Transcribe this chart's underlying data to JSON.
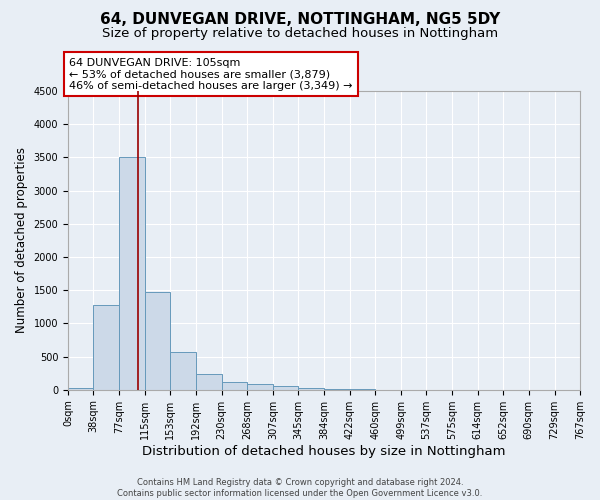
{
  "title": "64, DUNVEGAN DRIVE, NOTTINGHAM, NG5 5DY",
  "subtitle": "Size of property relative to detached houses in Nottingham",
  "xlabel": "Distribution of detached houses by size in Nottingham",
  "ylabel": "Number of detached properties",
  "footer_line1": "Contains HM Land Registry data © Crown copyright and database right 2024.",
  "footer_line2": "Contains public sector information licensed under the Open Government Licence v3.0.",
  "bin_edges": [
    0,
    38,
    77,
    115,
    153,
    192,
    230,
    268,
    307,
    345,
    384,
    422,
    460,
    499,
    537,
    575,
    614,
    652,
    690,
    729,
    767
  ],
  "bar_heights": [
    30,
    1280,
    3500,
    1470,
    570,
    240,
    120,
    80,
    55,
    30,
    5,
    5,
    0,
    0,
    0,
    0,
    0,
    0,
    0,
    0
  ],
  "bar_facecolor": "#ccd9e8",
  "bar_edgecolor": "#6699bb",
  "property_size": 105,
  "vline_color": "#990000",
  "annotation_text_line1": "64 DUNVEGAN DRIVE: 105sqm",
  "annotation_text_line2": "← 53% of detached houses are smaller (3,879)",
  "annotation_text_line3": "46% of semi-detached houses are larger (3,349) →",
  "annotation_box_edgecolor": "#cc0000",
  "annotation_box_facecolor": "#ffffff",
  "ylim": [
    0,
    4500
  ],
  "background_color": "#e8eef5",
  "axes_background_color": "#e8eef5",
  "grid_color": "#ffffff",
  "title_fontsize": 11,
  "subtitle_fontsize": 9.5,
  "xlabel_fontsize": 9.5,
  "ylabel_fontsize": 8.5,
  "tick_fontsize": 7,
  "tick_labels": [
    "0sqm",
    "38sqm",
    "77sqm",
    "115sqm",
    "153sqm",
    "192sqm",
    "230sqm",
    "268sqm",
    "307sqm",
    "345sqm",
    "384sqm",
    "422sqm",
    "460sqm",
    "499sqm",
    "537sqm",
    "575sqm",
    "614sqm",
    "652sqm",
    "690sqm",
    "729sqm",
    "767sqm"
  ]
}
